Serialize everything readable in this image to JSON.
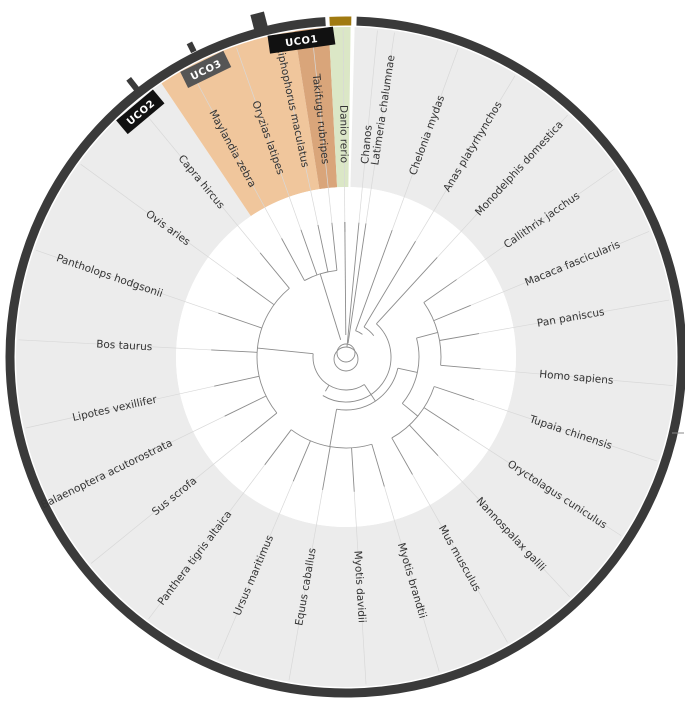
{
  "tree": {
    "leaves": [
      {
        "name": "Latimeria chalumnae",
        "group": "gray"
      },
      {
        "name": "Chelonia mydas",
        "group": "gray"
      },
      {
        "name": "Anas platyrhynchos",
        "group": "gray"
      },
      {
        "name": "Monodelphis domestica",
        "group": "gray"
      },
      {
        "name": "Callithrix jacchus",
        "group": "gray"
      },
      {
        "name": "Macaca fascicularis",
        "group": "gray"
      },
      {
        "name": "Pan paniscus",
        "group": "gray"
      },
      {
        "name": "Homo sapiens",
        "group": "gray"
      },
      {
        "name": "Tupaia chinensis",
        "group": "gray"
      },
      {
        "name": "Oryctolagus cuniculus",
        "group": "gray"
      },
      {
        "name": "Nannospalax galili",
        "group": "gray"
      },
      {
        "name": "Mus musculus",
        "group": "gray"
      },
      {
        "name": "Myotis brandtii",
        "group": "gray"
      },
      {
        "name": "Myotis davidii",
        "group": "gray"
      },
      {
        "name": "Equus caballus",
        "group": "gray"
      },
      {
        "name": "Ursus maritimus",
        "group": "gray"
      },
      {
        "name": "Panthera tigris altaica",
        "group": "gray"
      },
      {
        "name": "Sus scrofa",
        "group": "gray"
      },
      {
        "name": "Balaenoptera acutorostrata",
        "group": "gray"
      },
      {
        "name": "Lipotes vexillifer",
        "group": "gray"
      },
      {
        "name": "Bos taurus",
        "group": "gray"
      },
      {
        "name": "Pantholops hodgsonii",
        "group": "gray"
      },
      {
        "name": "Ovis aries",
        "group": "gray"
      },
      {
        "name": "Capra hircus",
        "group": "gray"
      },
      {
        "name": "Maylandia zebra",
        "group": "orange"
      },
      {
        "name": "Oryzias latipes",
        "group": "orange"
      },
      {
        "name": "Xiphophorus maculatus",
        "group": "orange"
      },
      {
        "name": "Takifugu rubripes",
        "group": "orange"
      },
      {
        "name": "Danio rerio",
        "group": "orange2"
      },
      {
        "name": "Chanos",
        "group": "green"
      }
    ],
    "clade_labels": [
      {
        "text": "UCO1"
      },
      {
        "text": "UCO2"
      },
      {
        "text": "UCO3"
      }
    ]
  },
  "colors": {
    "gray_sector": "#ececec",
    "orange_sector": "#f0c69c",
    "orange_sector_dark": "#d9a57a",
    "green_sector": "#dbe7c6",
    "outer_ring": "#3a3a3a",
    "gold_arc": "#a07a10",
    "branch": "#8c8c8c",
    "clade_box": "#111111",
    "clade_box_gray": "#555555"
  }
}
